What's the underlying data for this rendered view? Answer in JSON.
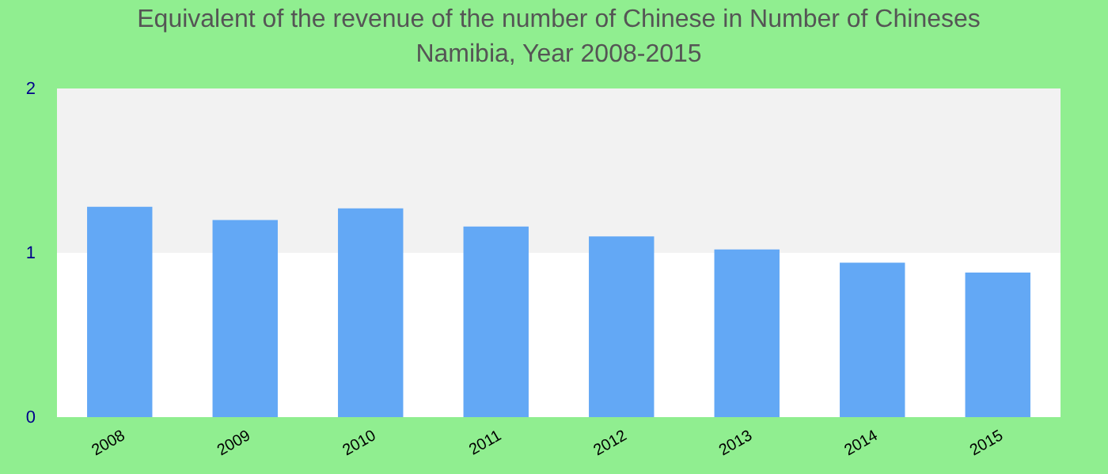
{
  "chart_data": {
    "type": "bar",
    "title": "Equivalent of the revenue of the number of Chinese  in Number of Chineses\nNamibia, Year 2008-2015",
    "categories": [
      "2008",
      "2009",
      "2010",
      "2011",
      "2012",
      "2013",
      "2014",
      "2015"
    ],
    "values": [
      1.28,
      1.2,
      1.27,
      1.16,
      1.1,
      1.02,
      0.94,
      0.88
    ],
    "color": "#63a8f5",
    "ylim": [
      0,
      2
    ],
    "yticks": [
      0,
      1,
      2
    ],
    "grid": false,
    "bands": [
      {
        "axis": "y",
        "from": 1,
        "to": 2,
        "color": "#f2f2f2"
      }
    ]
  }
}
